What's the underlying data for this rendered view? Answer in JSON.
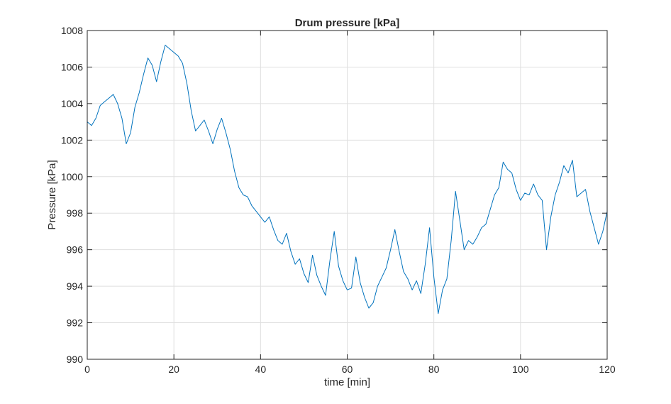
{
  "chart_data": {
    "type": "line",
    "title": "Drum pressure [kPa]",
    "xlabel": "time [min]",
    "ylabel": "Pressure [kPa]",
    "xlim": [
      0,
      120
    ],
    "ylim": [
      990,
      1008
    ],
    "xticks": [
      0,
      20,
      40,
      60,
      80,
      100,
      120
    ],
    "yticks": [
      990,
      992,
      994,
      996,
      998,
      1000,
      1002,
      1004,
      1006,
      1008
    ],
    "grid": true,
    "line_color": "#0072bd",
    "series": [
      {
        "x": [
          0,
          1,
          2,
          3,
          4,
          5,
          6,
          7,
          8,
          9,
          10,
          11,
          12,
          13,
          14,
          15,
          16,
          17,
          18,
          19,
          20,
          21,
          22,
          23,
          24,
          25,
          26,
          27,
          28,
          29,
          30,
          31,
          32,
          33,
          34,
          35,
          36,
          37,
          38,
          39,
          40,
          41,
          42,
          43,
          44,
          45,
          46,
          47,
          48,
          49,
          50,
          51,
          52,
          53,
          54,
          55,
          56,
          57,
          58,
          59,
          60,
          61,
          62,
          63,
          64,
          65,
          66,
          67,
          68,
          69,
          70,
          71,
          72,
          73,
          74,
          75,
          76,
          77,
          78,
          79,
          80,
          81,
          82,
          83,
          84,
          85,
          86,
          87,
          88,
          89,
          90,
          91,
          92,
          93,
          94,
          95,
          96,
          97,
          98,
          99,
          100,
          101,
          102,
          103,
          104,
          105,
          106,
          107,
          108,
          109,
          110,
          111,
          112,
          113,
          114,
          115,
          116,
          117,
          118,
          119,
          120
        ],
        "y": [
          1003.0,
          1002.8,
          1003.2,
          1003.9,
          1004.1,
          1004.3,
          1004.5,
          1004.0,
          1003.2,
          1001.8,
          1002.4,
          1003.8,
          1004.6,
          1005.6,
          1006.5,
          1006.1,
          1005.2,
          1006.3,
          1007.2,
          1007.0,
          1006.8,
          1006.6,
          1006.2,
          1005.1,
          1003.6,
          1002.5,
          1002.8,
          1003.1,
          1002.5,
          1001.8,
          1002.6,
          1003.2,
          1002.4,
          1001.5,
          1000.3,
          999.4,
          999.0,
          998.9,
          998.4,
          998.1,
          997.8,
          997.5,
          997.8,
          997.1,
          996.5,
          996.3,
          996.9,
          995.9,
          995.2,
          995.5,
          994.7,
          994.2,
          995.7,
          994.6,
          994.0,
          993.5,
          995.4,
          997.0,
          995.1,
          994.3,
          993.8,
          993.9,
          995.6,
          994.2,
          993.4,
          992.8,
          993.1,
          994.0,
          994.5,
          995.0,
          996.0,
          997.1,
          995.9,
          994.8,
          994.4,
          993.8,
          994.3,
          993.6,
          995.2,
          997.2,
          994.5,
          992.5,
          993.8,
          994.4,
          996.5,
          999.2,
          997.6,
          996.0,
          996.5,
          996.3,
          996.7,
          997.2,
          997.4,
          998.2,
          999.0,
          999.4,
          1000.8,
          1000.4,
          1000.2,
          999.3,
          998.7,
          999.1,
          999.0,
          999.6,
          999.0,
          998.7,
          996.0,
          997.8,
          999.0,
          999.7,
          1000.6,
          1000.2,
          1000.9,
          998.9,
          999.1,
          999.3,
          998.1,
          997.2,
          996.3,
          997.0,
          998.1
        ]
      }
    ]
  }
}
